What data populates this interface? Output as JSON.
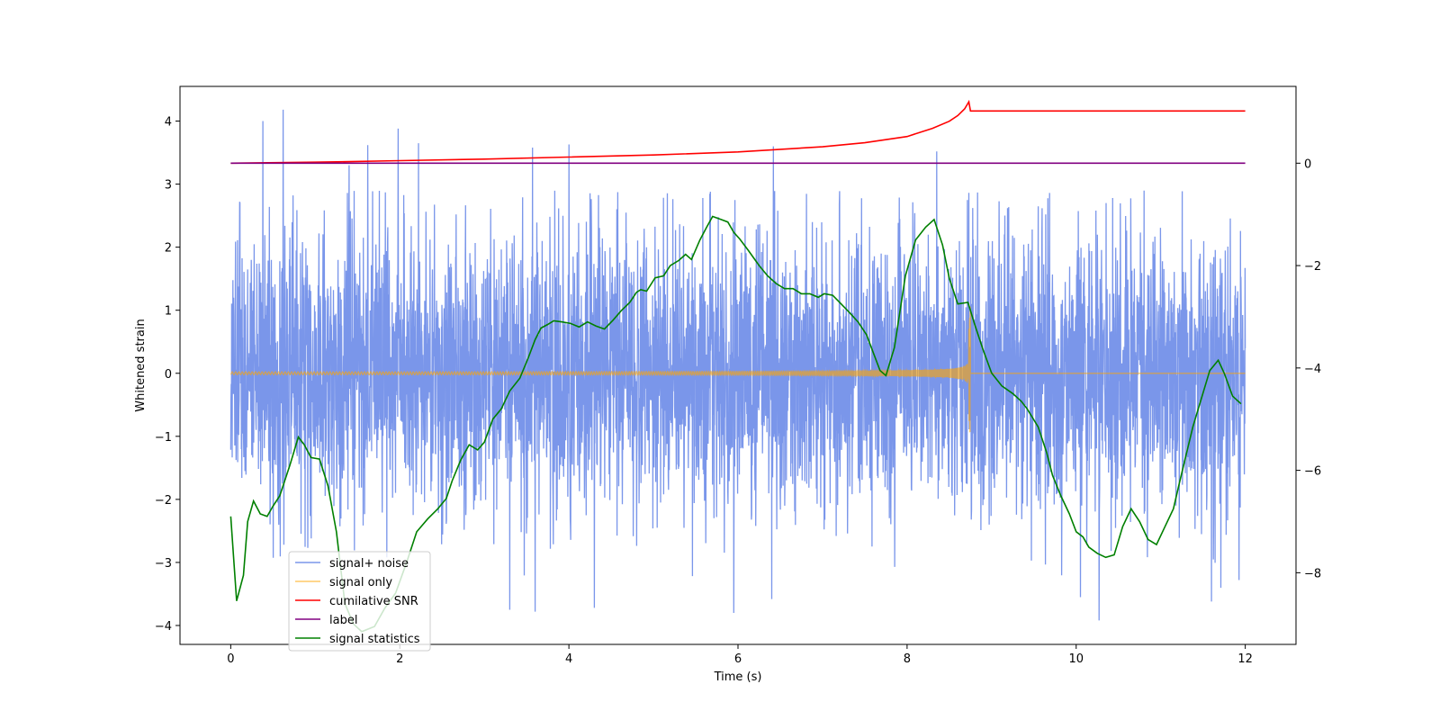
{
  "chart_data": {
    "type": "line",
    "title": "",
    "xlabel": "Time (s)",
    "ylabel": "Whitened strain",
    "xlim": [
      -0.6,
      12.6
    ],
    "ylim": [
      -4.3,
      4.55
    ],
    "y2lim": [
      -9.4,
      1.5
    ],
    "grid": false,
    "legend_loc": "lower-left",
    "xticks": [
      0,
      2,
      4,
      6,
      8,
      10,
      12
    ],
    "yticks": [
      -4,
      -3,
      -2,
      -1,
      0,
      1,
      2,
      3,
      4
    ],
    "y2ticks": [
      -8,
      -6,
      -4,
      -2,
      0
    ],
    "colors": {
      "noise": "#4169e1",
      "signal": "#ffa500",
      "snr": "#ff0000",
      "label": "#800080",
      "stat": "#008000"
    },
    "series": [
      {
        "name": "signal+ noise",
        "axis": "left",
        "description": "whitened strain data, approx gaussian noise sigma ~1.1 spanning -4 to 4.2 over 0-12 s",
        "spikes": [
          [
            0.38,
            4.0
          ],
          [
            0.62,
            4.18
          ],
          [
            1.4,
            3.3
          ],
          [
            1.62,
            3.62
          ],
          [
            1.98,
            3.88
          ],
          [
            2.22,
            3.65
          ],
          [
            3.57,
            3.58
          ],
          [
            4.0,
            3.63
          ],
          [
            6.42,
            3.6
          ],
          [
            8.35,
            3.52
          ],
          [
            3.6,
            -3.78
          ],
          [
            3.3,
            -3.75
          ],
          [
            6.4,
            -3.58
          ],
          [
            5.95,
            -3.8
          ],
          [
            10.27,
            -3.92
          ],
          [
            11.6,
            -3.62
          ],
          [
            4.3,
            -3.72
          ],
          [
            10.05,
            -3.55
          ]
        ]
      },
      {
        "name": "signal only",
        "axis": "left",
        "description": "chirp waveform growing in amplitude until merger",
        "merger_time": 8.75,
        "peak_amplitude": 1.05
      },
      {
        "name": "cumilative SNR",
        "axis": "right",
        "x": [
          0,
          1,
          2,
          3,
          4,
          5,
          6,
          7,
          7.5,
          8,
          8.3,
          8.5,
          8.6,
          8.68,
          8.73,
          8.75,
          12
        ],
        "y": [
          0,
          0.02,
          0.05,
          0.08,
          0.12,
          0.16,
          0.22,
          0.32,
          0.4,
          0.52,
          0.68,
          0.82,
          0.93,
          1.06,
          1.2,
          1.02,
          1.02
        ]
      },
      {
        "name": "label",
        "axis": "right",
        "x": [
          0,
          12
        ],
        "y": [
          0,
          0
        ]
      },
      {
        "name": "signal statistics",
        "axis": "right",
        "x": [
          0,
          0.07,
          0.15,
          0.2,
          0.27,
          0.35,
          0.43,
          0.5,
          0.58,
          0.7,
          0.8,
          0.87,
          0.95,
          1.05,
          1.15,
          1.25,
          1.35,
          1.45,
          1.55,
          1.7,
          1.82,
          1.95,
          2.08,
          2.2,
          2.33,
          2.45,
          2.55,
          2.62,
          2.72,
          2.82,
          2.92,
          3.0,
          3.1,
          3.2,
          3.3,
          3.42,
          3.52,
          3.6,
          3.67,
          3.75,
          3.82,
          3.92,
          4.02,
          4.12,
          4.22,
          4.32,
          4.42,
          4.52,
          4.62,
          4.72,
          4.8,
          4.85,
          4.92,
          5.02,
          5.12,
          5.2,
          5.3,
          5.38,
          5.45,
          5.55,
          5.63,
          5.7,
          5.8,
          5.88,
          5.95,
          6.02,
          6.12,
          6.25,
          6.35,
          6.45,
          6.55,
          6.65,
          6.75,
          6.85,
          6.95,
          7.02,
          7.12,
          7.22,
          7.32,
          7.42,
          7.52,
          7.6,
          7.68,
          7.75,
          7.85,
          7.98,
          8.1,
          8.22,
          8.32,
          8.42,
          8.5,
          8.6,
          8.72,
          8.8,
          8.9,
          9.0,
          9.12,
          9.25,
          9.35,
          9.42,
          9.55,
          9.65,
          9.72,
          9.82,
          9.92,
          10.0,
          10.08,
          10.15,
          10.25,
          10.35,
          10.45,
          10.55,
          10.65,
          10.75,
          10.85,
          10.95,
          11.05,
          11.15,
          11.22,
          11.3,
          11.38,
          11.48,
          11.58,
          11.68,
          11.75,
          11.85,
          11.95
        ],
        "y": [
          -6.9,
          -8.55,
          -8.05,
          -7.0,
          -6.6,
          -6.85,
          -6.9,
          -6.7,
          -6.5,
          -5.9,
          -5.35,
          -5.5,
          -5.75,
          -5.78,
          -6.3,
          -7.2,
          -8.6,
          -9.0,
          -9.15,
          -9.05,
          -8.7,
          -8.4,
          -7.8,
          -7.2,
          -6.95,
          -6.75,
          -6.55,
          -6.2,
          -5.8,
          -5.5,
          -5.6,
          -5.45,
          -5.0,
          -4.8,
          -4.45,
          -4.2,
          -3.8,
          -3.45,
          -3.22,
          -3.15,
          -3.08,
          -3.1,
          -3.13,
          -3.2,
          -3.1,
          -3.18,
          -3.24,
          -3.07,
          -2.88,
          -2.72,
          -2.52,
          -2.47,
          -2.5,
          -2.24,
          -2.2,
          -2.0,
          -1.9,
          -1.78,
          -1.88,
          -1.5,
          -1.25,
          -1.04,
          -1.1,
          -1.15,
          -1.35,
          -1.48,
          -1.7,
          -2.0,
          -2.2,
          -2.35,
          -2.45,
          -2.45,
          -2.55,
          -2.55,
          -2.62,
          -2.55,
          -2.58,
          -2.75,
          -2.92,
          -3.1,
          -3.35,
          -3.7,
          -4.05,
          -4.15,
          -3.6,
          -2.2,
          -1.5,
          -1.25,
          -1.1,
          -1.6,
          -2.25,
          -2.75,
          -2.72,
          -3.15,
          -3.65,
          -4.1,
          -4.35,
          -4.5,
          -4.65,
          -4.8,
          -5.15,
          -5.65,
          -6.1,
          -6.5,
          -6.85,
          -7.2,
          -7.3,
          -7.5,
          -7.62,
          -7.7,
          -7.65,
          -7.1,
          -6.75,
          -7.0,
          -7.35,
          -7.45,
          -7.1,
          -6.75,
          -6.25,
          -5.7,
          -5.15,
          -4.6,
          -4.05,
          -3.85,
          -4.1,
          -4.55,
          -4.7
        ]
      }
    ]
  }
}
